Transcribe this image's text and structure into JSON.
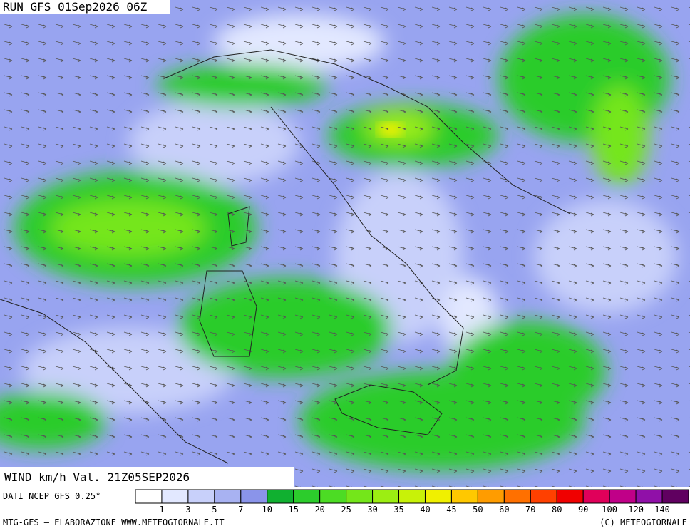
{
  "header": {
    "title": "RUN GFS 01Sep2026 06Z"
  },
  "map": {
    "label": "WIND km/h Val. 21Z05SEP2026"
  },
  "legend": {
    "source": "DATI NCEP GFS 0.25°",
    "levels": [
      "1",
      "3",
      "5",
      "7",
      "10",
      "15",
      "20",
      "25",
      "30",
      "35",
      "40",
      "45",
      "50",
      "60",
      "70",
      "80",
      "90",
      "100",
      "120",
      "140"
    ],
    "colors": [
      "#ffffff",
      "#e2e8ff",
      "#c8d0fa",
      "#a8b2f2",
      "#8a94ea",
      "#10b030",
      "#2ccc2c",
      "#4cdc24",
      "#74e61a",
      "#9cee12",
      "#c8f208",
      "#f0f000",
      "#ffc800",
      "#ff9c00",
      "#ff7000",
      "#ff4000",
      "#f00000",
      "#e0005a",
      "#c00088",
      "#9010a8",
      "#600060"
    ]
  },
  "footer": {
    "left": "MTG-GFS — ELABORAZIONE WWW.METEOGIORNALE.IT",
    "right": "(C) METEOGIORNALE"
  }
}
